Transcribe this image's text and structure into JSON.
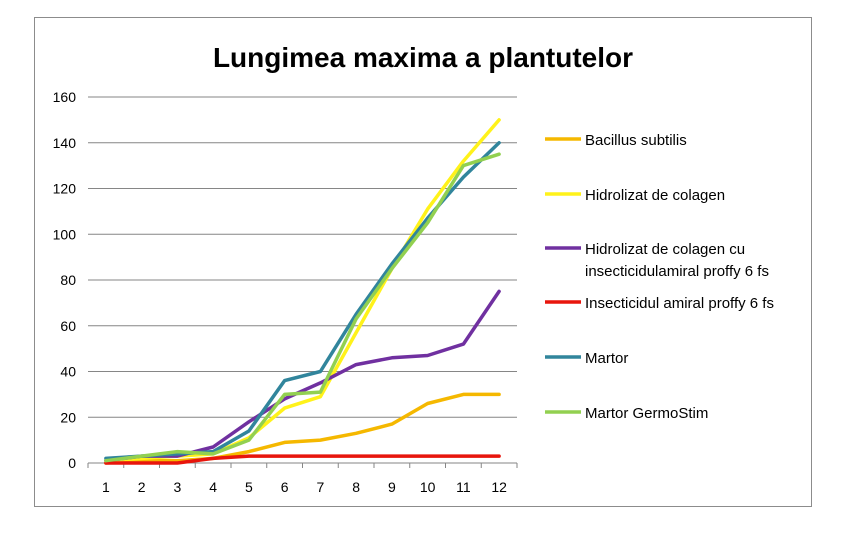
{
  "chart_data": {
    "type": "line",
    "title": "Lungimea maxima a plantutelor",
    "xlabel": "",
    "ylabel": "",
    "x": [
      1,
      2,
      3,
      4,
      5,
      6,
      7,
      8,
      9,
      10,
      11,
      12
    ],
    "x_tick_labels": [
      "1",
      "2",
      "3",
      "4",
      "5",
      "6",
      "7",
      "8",
      "9",
      "10",
      "11",
      "12"
    ],
    "ylim": [
      0,
      160
    ],
    "y_ticks": [
      0,
      20,
      40,
      60,
      80,
      100,
      120,
      140,
      160
    ],
    "y_tick_labels": [
      "0",
      "20",
      "40",
      "60",
      "80",
      "100",
      "120",
      "140",
      "160"
    ],
    "grid": "horizontal",
    "legend_position": "right",
    "series": [
      {
        "name": "Bacillus subtilis",
        "legend_lines": [
          "Bacillus subtilis"
        ],
        "color": "#F5B800",
        "values": [
          0,
          1,
          1,
          2,
          5,
          9,
          10,
          13,
          17,
          26,
          30,
          30
        ]
      },
      {
        "name": "Hidrolizat de colagen",
        "legend_lines": [
          "Hidrolizat de colagen"
        ],
        "color": "#FFF21A",
        "values": [
          1,
          2,
          3,
          4,
          11,
          24,
          29,
          57,
          85,
          111,
          132,
          150
        ]
      },
      {
        "name": "Hidrolizat de colagen cu insecticidulamiral proffy 6 fs",
        "legend_lines": [
          "Hidrolizat de colagen cu",
          "insecticidulamiral proffy 6 fs"
        ],
        "color": "#7030A0",
        "values": [
          1,
          3,
          3,
          7,
          18,
          28,
          35,
          43,
          46,
          47,
          52,
          75
        ]
      },
      {
        "name": "Insecticidul amiral proffy 6 fs",
        "legend_lines": [
          "Insecticidul amiral proffy 6 fs"
        ],
        "color": "#E8150C",
        "values": [
          0,
          0,
          0,
          2,
          3,
          3,
          3,
          3,
          3,
          3,
          3,
          3
        ]
      },
      {
        "name": "Martor",
        "legend_lines": [
          "Martor"
        ],
        "color": "#31859C",
        "values": [
          2,
          3,
          4,
          5,
          14,
          36,
          40,
          65,
          87,
          107,
          125,
          140
        ]
      },
      {
        "name": "Martor GermoStim",
        "legend_lines": [
          "Martor GermoStim"
        ],
        "color": "#92D050",
        "values": [
          1,
          3,
          5,
          4,
          10,
          30,
          31,
          63,
          85,
          105,
          130,
          135
        ]
      }
    ]
  }
}
